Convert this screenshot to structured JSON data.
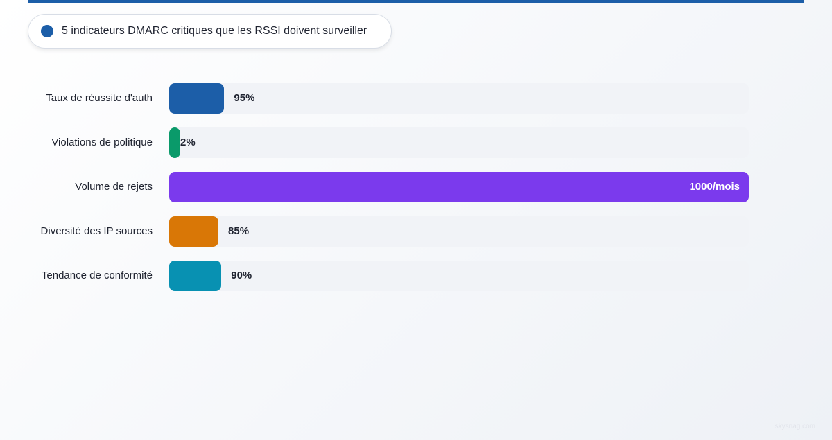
{
  "header": {
    "title": "5 indicateurs DMARC critiques que les RSSI doivent surveiller",
    "accent_color": "#1c5ea8"
  },
  "chart_data": {
    "type": "bar",
    "orientation": "horizontal",
    "title": "5 indicateurs DMARC critiques que les RSSI doivent surveiller",
    "categories": [
      "Taux de réussite d'auth",
      "Violations de politique",
      "Volume de rejets",
      "Diversité des IP sources",
      "Tendance de conformité"
    ],
    "values": [
      95,
      2,
      1000,
      85,
      90
    ],
    "value_labels": [
      "95%",
      "2%",
      "1000/mois",
      "85%",
      "90%"
    ],
    "colors": [
      "#1c5ea8",
      "#0a9a6a",
      "#7b3aed",
      "#d97706",
      "#0891b2"
    ],
    "xlim": [
      0,
      1000
    ],
    "grid": false,
    "legend": "none"
  },
  "watermark": "skysnag.com"
}
